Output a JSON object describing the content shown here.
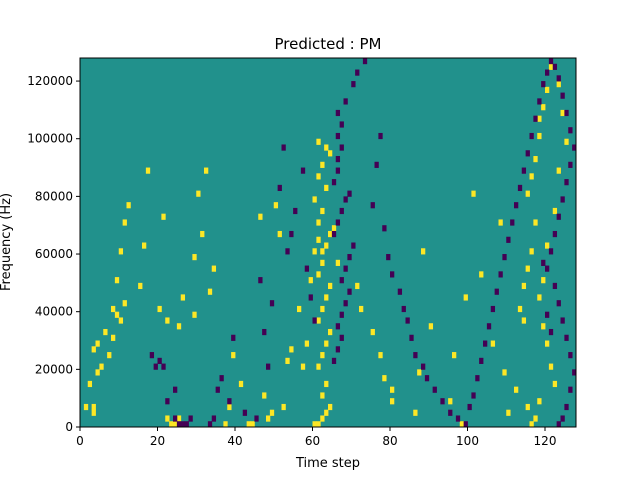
{
  "chart_data": {
    "type": "heatmap",
    "title": "Predicted : PM",
    "xlabel": "Time step",
    "ylabel": "Frequency (Hz)",
    "xlim": [
      0,
      128
    ],
    "ylim": [
      0,
      128000
    ],
    "x_ticks": [
      0,
      20,
      40,
      60,
      80,
      100,
      120
    ],
    "y_ticks": [
      0,
      20000,
      40000,
      60000,
      80000,
      100000,
      120000
    ],
    "x_tick_labels": [
      "0",
      "20",
      "40",
      "60",
      "80",
      "100",
      "120"
    ],
    "y_tick_labels": [
      "0",
      "20000",
      "40000",
      "60000",
      "80000",
      "100000",
      "120000"
    ],
    "grid": false,
    "n_time_steps": 128,
    "n_freq_bins": 64,
    "bin_hz": 2000,
    "colors": {
      "background_value": "#21918c",
      "high_value": "#fde725",
      "low_value": "#440154"
    },
    "yellow_cells": [
      [
        1,
        3
      ],
      [
        3,
        3
      ],
      [
        3,
        2
      ],
      [
        2,
        7
      ],
      [
        3,
        13
      ],
      [
        4,
        9
      ],
      [
        5,
        10
      ],
      [
        4,
        14
      ],
      [
        6,
        16
      ],
      [
        7,
        12
      ],
      [
        8,
        15
      ],
      [
        8,
        20
      ],
      [
        9,
        19
      ],
      [
        10,
        18
      ],
      [
        11,
        21
      ],
      [
        9,
        25
      ],
      [
        10,
        30
      ],
      [
        11,
        35
      ],
      [
        12,
        38
      ],
      [
        15,
        24
      ],
      [
        16,
        31
      ],
      [
        17,
        44
      ],
      [
        20,
        20
      ],
      [
        21,
        36
      ],
      [
        22,
        18
      ],
      [
        22,
        1
      ],
      [
        23,
        0
      ],
      [
        24,
        0
      ],
      [
        25,
        1
      ],
      [
        25,
        17
      ],
      [
        26,
        22
      ],
      [
        29,
        29
      ],
      [
        29,
        19
      ],
      [
        30,
        40
      ],
      [
        31,
        33
      ],
      [
        32,
        44
      ],
      [
        33,
        23
      ],
      [
        34,
        27
      ],
      [
        37,
        0
      ],
      [
        38,
        3
      ],
      [
        39,
        12
      ],
      [
        41,
        7
      ],
      [
        43,
        0
      ],
      [
        44,
        0
      ],
      [
        46,
        36
      ],
      [
        47,
        5
      ],
      [
        48,
        1
      ],
      [
        49,
        2
      ],
      [
        50,
        38
      ],
      [
        51,
        33
      ],
      [
        52,
        3
      ],
      [
        53,
        11
      ],
      [
        54,
        13
      ],
      [
        56,
        20
      ],
      [
        57,
        10
      ],
      [
        58,
        14
      ],
      [
        59,
        25
      ],
      [
        60,
        30
      ],
      [
        60,
        0
      ],
      [
        61,
        0
      ],
      [
        62,
        1
      ],
      [
        63,
        2
      ],
      [
        64,
        3
      ],
      [
        62,
        5
      ],
      [
        63,
        7
      ],
      [
        61,
        10
      ],
      [
        62,
        12
      ],
      [
        63,
        14
      ],
      [
        64,
        16
      ],
      [
        61,
        18
      ],
      [
        62,
        20
      ],
      [
        63,
        22
      ],
      [
        64,
        24
      ],
      [
        61,
        26
      ],
      [
        62,
        28
      ],
      [
        63,
        31
      ],
      [
        64,
        33
      ],
      [
        61,
        35
      ],
      [
        62,
        37
      ],
      [
        60,
        39
      ],
      [
        63,
        41
      ],
      [
        61,
        43
      ],
      [
        62,
        45
      ],
      [
        64,
        47
      ],
      [
        63,
        48
      ],
      [
        61,
        49
      ],
      [
        62,
        30
      ],
      [
        61,
        32
      ],
      [
        65,
        34
      ],
      [
        66,
        28
      ],
      [
        71,
        24
      ],
      [
        72,
        20
      ],
      [
        75,
        16
      ],
      [
        77,
        12
      ],
      [
        78,
        8
      ],
      [
        80,
        4
      ],
      [
        80,
        6
      ],
      [
        86,
        2
      ],
      [
        87,
        9
      ],
      [
        88,
        30
      ],
      [
        90,
        17
      ],
      [
        95,
        4
      ],
      [
        96,
        12
      ],
      [
        98,
        0
      ],
      [
        99,
        22
      ],
      [
        101,
        40
      ],
      [
        103,
        26
      ],
      [
        106,
        14
      ],
      [
        108,
        35
      ],
      [
        109,
        9
      ],
      [
        110,
        2
      ],
      [
        112,
        6
      ],
      [
        113,
        20
      ],
      [
        114,
        18
      ],
      [
        114,
        24
      ],
      [
        115,
        27
      ],
      [
        116,
        30
      ],
      [
        117,
        35
      ],
      [
        115,
        40
      ],
      [
        116,
        43
      ],
      [
        117,
        46
      ],
      [
        118,
        50
      ],
      [
        118,
        53
      ],
      [
        119,
        55
      ],
      [
        120,
        58
      ],
      [
        121,
        62
      ],
      [
        123,
        59
      ],
      [
        124,
        54
      ],
      [
        125,
        49
      ],
      [
        123,
        44
      ],
      [
        122,
        37
      ],
      [
        120,
        31
      ],
      [
        119,
        25
      ],
      [
        118,
        22
      ],
      [
        119,
        17
      ],
      [
        120,
        14
      ],
      [
        121,
        10
      ],
      [
        122,
        7
      ],
      [
        118,
        4
      ],
      [
        117,
        1
      ],
      [
        116,
        0
      ],
      [
        115,
        3
      ]
    ],
    "purple_cells": [
      [
        18,
        12
      ],
      [
        19,
        10
      ],
      [
        20,
        11
      ],
      [
        21,
        10
      ],
      [
        22,
        4
      ],
      [
        24,
        6
      ],
      [
        24,
        1
      ],
      [
        25,
        0
      ],
      [
        26,
        0
      ],
      [
        27,
        0
      ],
      [
        28,
        1
      ],
      [
        33,
        0
      ],
      [
        34,
        1
      ],
      [
        35,
        6
      ],
      [
        36,
        8
      ],
      [
        38,
        4
      ],
      [
        39,
        15
      ],
      [
        42,
        2
      ],
      [
        45,
        1
      ],
      [
        46,
        25
      ],
      [
        47,
        16
      ],
      [
        48,
        10
      ],
      [
        49,
        21
      ],
      [
        51,
        41
      ],
      [
        52,
        48
      ],
      [
        53,
        30
      ],
      [
        54,
        33
      ],
      [
        55,
        37
      ],
      [
        57,
        44
      ],
      [
        58,
        27
      ],
      [
        59,
        22
      ],
      [
        60,
        18
      ],
      [
        65,
        11
      ],
      [
        66,
        13
      ],
      [
        67,
        15
      ],
      [
        66,
        17
      ],
      [
        67,
        19
      ],
      [
        68,
        21
      ],
      [
        69,
        23
      ],
      [
        67,
        25
      ],
      [
        68,
        27
      ],
      [
        69,
        29
      ],
      [
        70,
        31
      ],
      [
        65,
        33
      ],
      [
        66,
        35
      ],
      [
        67,
        37
      ],
      [
        68,
        39
      ],
      [
        69,
        40
      ],
      [
        65,
        42
      ],
      [
        66,
        44
      ],
      [
        66,
        46
      ],
      [
        67,
        48
      ],
      [
        66,
        50
      ],
      [
        67,
        52
      ],
      [
        66,
        54
      ],
      [
        68,
        56
      ],
      [
        70,
        59
      ],
      [
        71,
        61
      ],
      [
        73,
        63
      ],
      [
        75,
        38
      ],
      [
        76,
        45
      ],
      [
        77,
        50
      ],
      [
        78,
        34
      ],
      [
        79,
        29
      ],
      [
        80,
        26
      ],
      [
        82,
        23
      ],
      [
        83,
        20
      ],
      [
        84,
        18
      ],
      [
        85,
        15
      ],
      [
        86,
        12
      ],
      [
        88,
        10
      ],
      [
        89,
        8
      ],
      [
        91,
        6
      ],
      [
        93,
        4
      ],
      [
        95,
        2
      ],
      [
        97,
        1
      ],
      [
        99,
        0
      ],
      [
        100,
        3
      ],
      [
        101,
        5
      ],
      [
        102,
        8
      ],
      [
        103,
        11
      ],
      [
        104,
        14
      ],
      [
        105,
        17
      ],
      [
        106,
        20
      ],
      [
        107,
        23
      ],
      [
        108,
        26
      ],
      [
        109,
        29
      ],
      [
        110,
        32
      ],
      [
        111,
        35
      ],
      [
        112,
        38
      ],
      [
        113,
        41
      ],
      [
        114,
        44
      ],
      [
        115,
        47
      ],
      [
        116,
        50
      ],
      [
        117,
        53
      ],
      [
        118,
        56
      ],
      [
        119,
        59
      ],
      [
        120,
        61
      ],
      [
        121,
        63
      ],
      [
        122,
        62
      ],
      [
        123,
        60
      ],
      [
        124,
        57
      ],
      [
        125,
        54
      ],
      [
        126,
        51
      ],
      [
        127,
        48
      ],
      [
        126,
        45
      ],
      [
        125,
        42
      ],
      [
        124,
        39
      ],
      [
        123,
        36
      ],
      [
        122,
        33
      ],
      [
        121,
        30
      ],
      [
        120,
        27
      ],
      [
        122,
        24
      ],
      [
        123,
        21
      ],
      [
        124,
        18
      ],
      [
        125,
        15
      ],
      [
        126,
        12
      ],
      [
        127,
        9
      ],
      [
        126,
        6
      ],
      [
        125,
        3
      ],
      [
        124,
        1
      ],
      [
        123,
        0
      ],
      [
        121,
        16
      ],
      [
        120,
        19
      ],
      [
        119,
        28
      ]
    ]
  }
}
